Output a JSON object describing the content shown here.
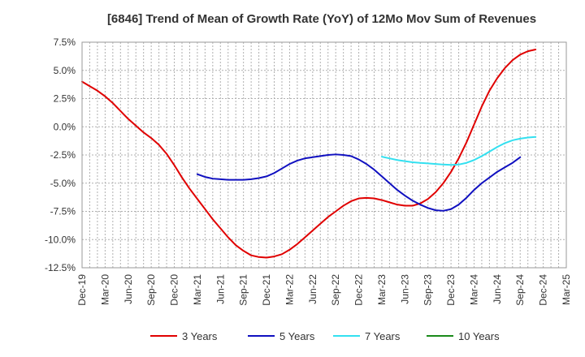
{
  "chart_data": {
    "type": "line",
    "title": "[6846]  Trend of Mean of Growth Rate (YoY) of 12Mo Mov Sum of Revenues",
    "xlabel": "",
    "ylabel": "",
    "ylim": [
      -12.5,
      7.5
    ],
    "yticks": [
      7.5,
      5.0,
      2.5,
      0.0,
      -2.5,
      -5.0,
      -7.5,
      -10.0,
      -12.5
    ],
    "ytick_labels": [
      "7.5%",
      "5.0%",
      "2.5%",
      "0.0%",
      "-2.5%",
      "-5.0%",
      "-7.5%",
      "-10.0%",
      "-12.5%"
    ],
    "xticks": [
      "Dec-19",
      "Mar-20",
      "Jun-20",
      "Sep-20",
      "Dec-20",
      "Mar-21",
      "Jun-21",
      "Sep-21",
      "Dec-21",
      "Mar-22",
      "Jun-22",
      "Sep-22",
      "Dec-22",
      "Mar-23",
      "Jun-23",
      "Sep-23",
      "Dec-23",
      "Mar-24",
      "Jun-24",
      "Sep-24",
      "Dec-24",
      "Mar-25"
    ],
    "grid": true,
    "legend_position": "bottom",
    "series": [
      {
        "name": "3 Years",
        "color": "#e00000",
        "start_index": 0,
        "values": [
          4.0,
          3.6,
          3.2,
          2.7,
          2.1,
          1.4,
          0.7,
          0.1,
          -0.5,
          -1.0,
          -1.6,
          -2.4,
          -3.4,
          -4.5,
          -5.5,
          -6.4,
          -7.3,
          -8.2,
          -9.0,
          -9.8,
          -10.5,
          -11.0,
          -11.4,
          -11.55,
          -11.6,
          -11.5,
          -11.3,
          -10.9,
          -10.4,
          -9.8,
          -9.2,
          -8.6,
          -8.0,
          -7.5,
          -7.0,
          -6.6,
          -6.35,
          -6.3,
          -6.35,
          -6.5,
          -6.7,
          -6.9,
          -7.0,
          -7.0,
          -6.8,
          -6.4,
          -5.8,
          -5.0,
          -4.0,
          -2.8,
          -1.4,
          0.2,
          1.8,
          3.2,
          4.3,
          5.2,
          5.9,
          6.4,
          6.7,
          6.85
        ]
      },
      {
        "name": "5 Years",
        "color": "#1010c0",
        "start_index": 15,
        "values": [
          -4.2,
          -4.45,
          -4.6,
          -4.65,
          -4.7,
          -4.7,
          -4.7,
          -4.65,
          -4.55,
          -4.4,
          -4.1,
          -3.7,
          -3.3,
          -3.0,
          -2.8,
          -2.7,
          -2.6,
          -2.5,
          -2.45,
          -2.5,
          -2.6,
          -2.9,
          -3.3,
          -3.8,
          -4.4,
          -5.0,
          -5.6,
          -6.1,
          -6.55,
          -6.9,
          -7.2,
          -7.4,
          -7.45,
          -7.3,
          -6.9,
          -6.3,
          -5.6,
          -5.0,
          -4.5,
          -4.0,
          -3.6,
          -3.2,
          -2.7
        ]
      },
      {
        "name": "7 Years",
        "color": "#33e0f0",
        "start_index": 39,
        "values": [
          -2.65,
          -2.8,
          -2.95,
          -3.05,
          -3.15,
          -3.2,
          -3.25,
          -3.3,
          -3.35,
          -3.38,
          -3.35,
          -3.2,
          -2.95,
          -2.6,
          -2.2,
          -1.8,
          -1.45,
          -1.2,
          -1.05,
          -0.95,
          -0.9
        ]
      },
      {
        "name": "10 Years",
        "color": "#1a8a1a",
        "start_index": 0,
        "values": []
      }
    ]
  }
}
